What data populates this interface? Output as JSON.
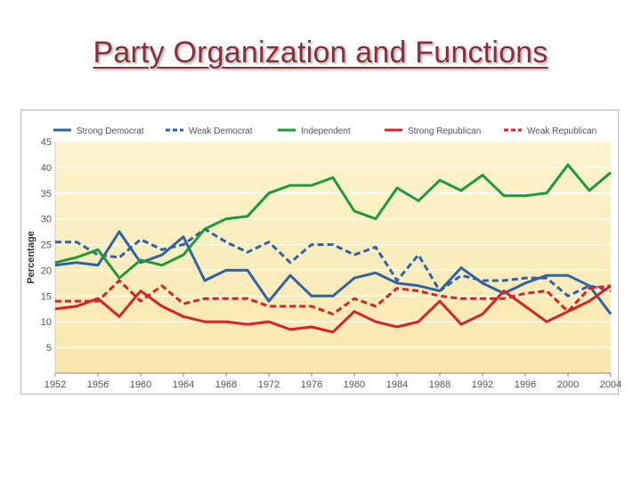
{
  "slide": {
    "title": "Party Organization and Functions"
  },
  "colors": {
    "blue": "#2e63a8",
    "green": "#1f9a3a",
    "red": "#d3242b",
    "plot_bg": "#fbf0c3"
  },
  "chart_data": {
    "type": "line",
    "title": "",
    "xlabel": "",
    "ylabel": "Percentage",
    "xlim": [
      1952,
      2004
    ],
    "ylim": [
      0,
      45
    ],
    "yticks": [
      5,
      10,
      15,
      20,
      25,
      30,
      35,
      40,
      45
    ],
    "xticks": [
      1952,
      1956,
      1960,
      1964,
      1968,
      1972,
      1976,
      1980,
      1984,
      1988,
      1992,
      1996,
      2000,
      2004
    ],
    "x": [
      1952,
      1954,
      1956,
      1958,
      1960,
      1962,
      1964,
      1966,
      1968,
      1970,
      1972,
      1974,
      1976,
      1978,
      1980,
      1982,
      1984,
      1986,
      1988,
      1990,
      1992,
      1994,
      1996,
      1998,
      2000,
      2002,
      2004
    ],
    "legend_position": "top",
    "series": [
      {
        "name": "Strong Democrat",
        "color": "#2e63a8",
        "dash": "solid",
        "values": [
          21,
          21.5,
          21,
          27.5,
          21.5,
          23,
          26.5,
          18,
          20,
          20,
          14,
          19,
          15,
          15,
          18.5,
          19.5,
          17.5,
          17,
          16,
          20.5,
          17.5,
          15.5,
          17.5,
          19,
          19,
          17,
          11.5
        ]
      },
      {
        "name": "Weak Democrat",
        "color": "#2e63a8",
        "dash": "dashed",
        "values": [
          25.5,
          25.5,
          23,
          22.5,
          26,
          24,
          25,
          28,
          25.5,
          23.5,
          25.5,
          21.5,
          25,
          25,
          23,
          24.5,
          18,
          23,
          16,
          19,
          18,
          18,
          18.5,
          18.5,
          15,
          17,
          16
        ]
      },
      {
        "name": "Independent",
        "color": "#1f9a3a",
        "dash": "solid",
        "values": [
          21.5,
          22.5,
          24,
          18.5,
          22,
          21,
          23,
          28,
          30,
          30.5,
          35,
          36.5,
          36.5,
          38,
          31.5,
          30,
          36,
          33.5,
          37.5,
          35.5,
          38.5,
          34.5,
          34.5,
          35,
          40.5,
          35.5,
          39
        ]
      },
      {
        "name": "Strong Republican",
        "color": "#d3242b",
        "dash": "solid",
        "values": [
          12.5,
          13,
          14.5,
          11,
          16,
          13,
          11,
          10,
          10,
          9.5,
          10,
          8.5,
          9,
          8,
          12,
          10,
          9,
          10,
          14,
          9.5,
          11.5,
          16,
          13,
          10,
          12,
          14,
          17
        ]
      },
      {
        "name": "Weak Republican",
        "color": "#d3242b",
        "dash": "dashed",
        "values": [
          14,
          14,
          14,
          18,
          14,
          17,
          13.5,
          14.5,
          14.5,
          14.5,
          13,
          13,
          13,
          11.5,
          14.5,
          13,
          16.5,
          16,
          15,
          14.5,
          14.5,
          14.5,
          15.5,
          16,
          12,
          16.5,
          17
        ]
      }
    ]
  }
}
